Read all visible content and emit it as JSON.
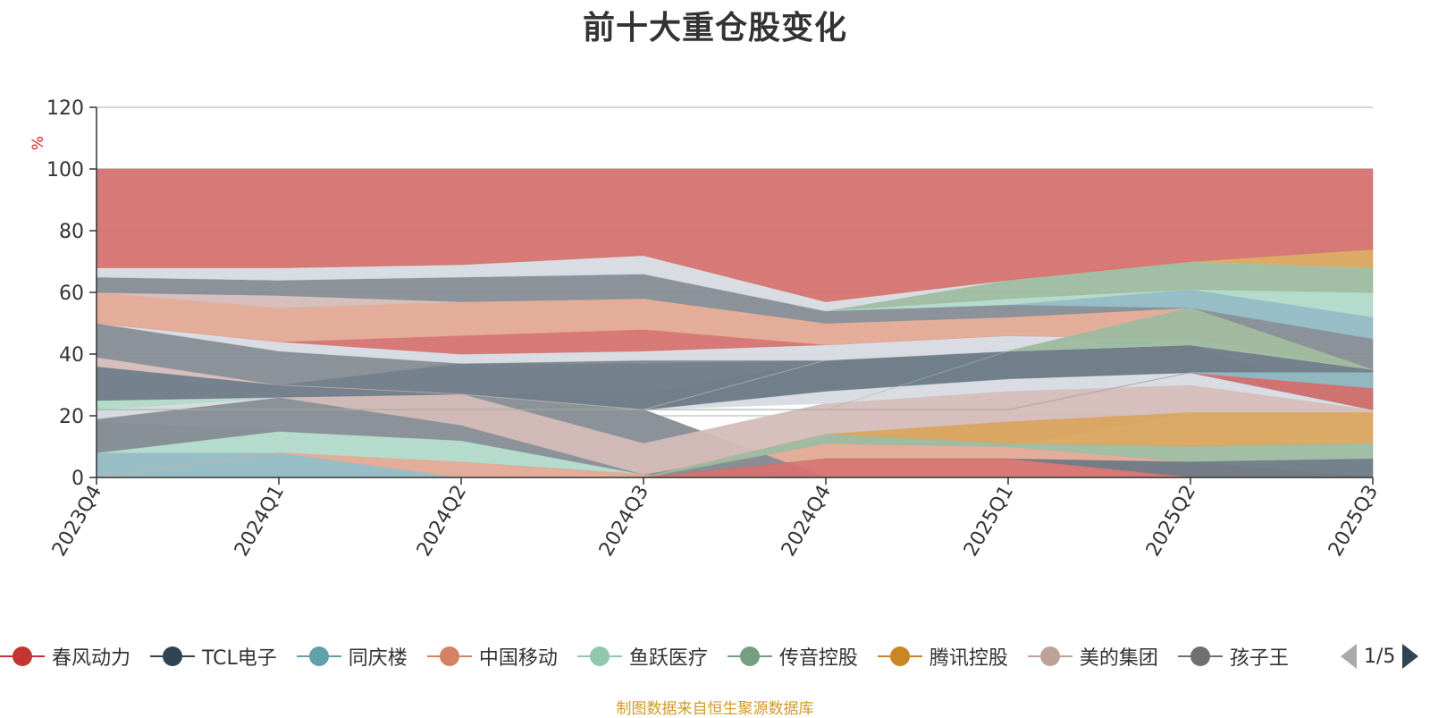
{
  "chart_data": {
    "type": "area",
    "title": "前十大重仓股变化",
    "ylabel": "%",
    "ylim": [
      0,
      120
    ],
    "yticks": [
      "0",
      "20",
      "40",
      "60",
      "80",
      "100",
      "120"
    ],
    "categories": [
      "2023Q4",
      "2024Q1",
      "2024Q2",
      "2024Q3",
      "2024Q4",
      "2025Q1",
      "2025Q2",
      "2025Q3"
    ],
    "grid": true,
    "bands": [
      {
        "color": "#91bac4",
        "values": [
          [
            0,
            8
          ],
          [
            0,
            8
          ],
          [
            0,
            0
          ],
          [
            0,
            0
          ],
          [
            0,
            0
          ],
          [
            0,
            0
          ],
          [
            0,
            0
          ],
          [
            0,
            0
          ]
        ]
      },
      {
        "color": "#b0d9c8",
        "values": [
          [
            8,
            18
          ],
          [
            8,
            15
          ],
          [
            5,
            12
          ],
          [
            0,
            1
          ],
          [
            0,
            0
          ],
          [
            0,
            0
          ],
          [
            0,
            0
          ],
          [
            0,
            0
          ]
        ]
      },
      {
        "color": "#e3a994",
        "values": [
          [
            0,
            0
          ],
          [
            8,
            8
          ],
          [
            0,
            5
          ],
          [
            0,
            1
          ],
          [
            6,
            11
          ],
          [
            6,
            10
          ],
          [
            0,
            5
          ],
          [
            0,
            0
          ]
        ]
      },
      {
        "color": "#858c94",
        "values": [
          [
            8,
            19
          ],
          [
            15,
            26
          ],
          [
            12,
            27
          ],
          [
            1,
            22
          ],
          [
            0,
            0
          ],
          [
            0,
            0
          ],
          [
            0,
            0
          ],
          [
            0,
            0
          ]
        ]
      },
      {
        "color": "#d4bcb8",
        "values": [
          [
            19,
            22
          ],
          [
            26,
            26
          ],
          [
            17,
            27
          ],
          [
            1,
            11
          ],
          [
            11,
            24
          ],
          [
            10,
            28
          ],
          [
            21,
            30
          ],
          [
            21,
            22
          ]
        ]
      },
      {
        "color": "#d7dbe2",
        "values": [
          [
            19,
            22
          ],
          [
            26,
            26
          ],
          [
            27,
            27
          ],
          [
            22,
            22
          ],
          [
            24,
            28
          ],
          [
            28,
            32
          ],
          [
            30,
            34
          ],
          [
            22,
            22
          ]
        ]
      },
      {
        "color": "#b0d9c8",
        "values": [
          [
            22,
            25
          ],
          [
            26,
            26
          ],
          [
            27,
            27
          ],
          [
            22,
            27
          ],
          [
            28,
            38
          ],
          [
            32,
            41
          ],
          [
            34,
            43
          ],
          [
            22,
            22
          ]
        ]
      },
      {
        "color": "#6e7a86",
        "values": [
          [
            25,
            36
          ],
          [
            26,
            30
          ],
          [
            27,
            37
          ],
          [
            22,
            38
          ],
          [
            28,
            38
          ],
          [
            32,
            41
          ],
          [
            34,
            43
          ],
          [
            22,
            35
          ]
        ]
      },
      {
        "color": "#d4bcb8",
        "values": [
          [
            36,
            39
          ],
          [
            30,
            30
          ],
          [
            27,
            27
          ],
          [
            22,
            22
          ],
          [
            38,
            38
          ],
          [
            41,
            41
          ],
          [
            43,
            43
          ],
          [
            35,
            35
          ]
        ]
      },
      {
        "color": "#858c94",
        "values": [
          [
            39,
            50
          ],
          [
            30,
            41
          ],
          [
            37,
            37
          ],
          [
            37,
            38
          ],
          [
            38,
            38
          ],
          [
            41,
            41
          ],
          [
            43,
            43
          ],
          [
            35,
            35
          ]
        ]
      },
      {
        "color": "#d7dbe2",
        "values": [
          [
            50,
            50
          ],
          [
            41,
            44
          ],
          [
            37,
            40
          ],
          [
            38,
            41
          ],
          [
            38,
            43
          ],
          [
            41,
            46
          ],
          [
            43,
            45
          ],
          [
            35,
            35
          ]
        ]
      },
      {
        "color": "#d47270",
        "values": [
          [
            50,
            50
          ],
          [
            44,
            44
          ],
          [
            40,
            46
          ],
          [
            41,
            48
          ],
          [
            43,
            43
          ],
          [
            46,
            46
          ],
          [
            45,
            45
          ],
          [
            35,
            35
          ]
        ]
      },
      {
        "color": "#e3a994",
        "values": [
          [
            50,
            60
          ],
          [
            44,
            55
          ],
          [
            46,
            57
          ],
          [
            48,
            58
          ],
          [
            43,
            50
          ],
          [
            46,
            52
          ],
          [
            45,
            55
          ],
          [
            35,
            35
          ]
        ]
      },
      {
        "color": "#d4bcb8",
        "values": [
          [
            60,
            60
          ],
          [
            55,
            59
          ],
          [
            57,
            57
          ],
          [
            58,
            58
          ],
          [
            50,
            50
          ],
          [
            52,
            52
          ],
          [
            55,
            55
          ],
          [
            35,
            35
          ]
        ]
      },
      {
        "color": "#858c94",
        "values": [
          [
            60,
            65
          ],
          [
            59,
            64
          ],
          [
            57,
            65
          ],
          [
            58,
            66
          ],
          [
            50,
            54
          ],
          [
            52,
            56
          ],
          [
            55,
            55
          ],
          [
            35,
            45
          ]
        ]
      },
      {
        "color": "#91bac4",
        "values": [
          [
            65,
            65
          ],
          [
            64,
            64
          ],
          [
            65,
            65
          ],
          [
            66,
            66
          ],
          [
            54,
            54
          ],
          [
            56,
            56
          ],
          [
            55,
            61
          ],
          [
            45,
            52
          ]
        ]
      },
      {
        "color": "#b0d9c8",
        "values": [
          [
            65,
            65
          ],
          [
            64,
            64
          ],
          [
            65,
            65
          ],
          [
            66,
            66
          ],
          [
            54,
            54
          ],
          [
            56,
            58
          ],
          [
            61,
            61
          ],
          [
            52,
            60
          ]
        ]
      },
      {
        "color": "#9dba9f",
        "values": [
          [
            65,
            65
          ],
          [
            64,
            64
          ],
          [
            65,
            65
          ],
          [
            66,
            66
          ],
          [
            54,
            54
          ],
          [
            58,
            64
          ],
          [
            61,
            70
          ],
          [
            60,
            68
          ]
        ]
      },
      {
        "color": "#d7dbe2",
        "values": [
          [
            65,
            68
          ],
          [
            64,
            68
          ],
          [
            65,
            69
          ],
          [
            66,
            72
          ],
          [
            54,
            57
          ],
          [
            64,
            64
          ],
          [
            70,
            70
          ],
          [
            68,
            68
          ]
        ]
      },
      {
        "color": "#d9a55e",
        "values": [
          [
            68,
            68
          ],
          [
            68,
            68
          ],
          [
            69,
            69
          ],
          [
            72,
            72
          ],
          [
            57,
            57
          ],
          [
            64,
            64
          ],
          [
            70,
            70
          ],
          [
            68,
            74
          ]
        ]
      },
      {
        "color": "#d47270",
        "values": [
          [
            68,
            100
          ],
          [
            68,
            100
          ],
          [
            69,
            100
          ],
          [
            72,
            100
          ],
          [
            57,
            100
          ],
          [
            64,
            100
          ],
          [
            70,
            100
          ],
          [
            74,
            100
          ]
        ]
      },
      {
        "color": "#d9a55e",
        "values": [
          [
            0,
            0
          ],
          [
            0,
            0
          ],
          [
            0,
            0
          ],
          [
            0,
            0
          ],
          [
            14,
            14
          ],
          [
            11,
            18
          ],
          [
            10,
            21
          ],
          [
            11,
            21
          ]
        ]
      },
      {
        "color": "#9dba9f",
        "values": [
          [
            0,
            0
          ],
          [
            0,
            0
          ],
          [
            0,
            0
          ],
          [
            0,
            0
          ],
          [
            11,
            14
          ],
          [
            10,
            11
          ],
          [
            5,
            10
          ],
          [
            6,
            11
          ]
        ]
      },
      {
        "color": "#6e7a86",
        "values": [
          [
            0,
            0
          ],
          [
            0,
            0
          ],
          [
            0,
            0
          ],
          [
            0,
            0
          ],
          [
            6,
            6
          ],
          [
            6,
            6
          ],
          [
            0,
            5
          ],
          [
            0,
            6
          ]
        ]
      },
      {
        "color": "#d47270",
        "values": [
          [
            0,
            0
          ],
          [
            0,
            0
          ],
          [
            0,
            0
          ],
          [
            0,
            0
          ],
          [
            0,
            6
          ],
          [
            0,
            6
          ],
          [
            0,
            0
          ],
          [
            0,
            0
          ]
        ]
      },
      {
        "color": "#d47270",
        "values": [
          [
            22,
            22
          ],
          [
            22,
            22
          ],
          [
            22,
            22
          ],
          [
            22,
            22
          ],
          [
            22,
            22
          ],
          [
            22,
            22
          ],
          [
            34,
            34
          ],
          [
            22,
            29
          ]
        ]
      },
      {
        "color": "#91bac4",
        "values": [
          [
            22,
            22
          ],
          [
            22,
            22
          ],
          [
            22,
            22
          ],
          [
            22,
            22
          ],
          [
            22,
            22
          ],
          [
            22,
            22
          ],
          [
            34,
            34
          ],
          [
            29,
            34
          ]
        ]
      },
      {
        "color": "#9dba9f",
        "values": [
          [
            22,
            22
          ],
          [
            22,
            22
          ],
          [
            22,
            22
          ],
          [
            22,
            22
          ],
          [
            22,
            22
          ],
          [
            41,
            41
          ],
          [
            43,
            55
          ],
          [
            35,
            35
          ]
        ]
      }
    ]
  },
  "legend": {
    "items": [
      {
        "label": "春风动力",
        "color": "#c23531"
      },
      {
        "label": "TCL电子",
        "color": "#2f4554"
      },
      {
        "label": "同庆楼",
        "color": "#61a0a8"
      },
      {
        "label": "中国移动",
        "color": "#d48265"
      },
      {
        "label": "鱼跃医疗",
        "color": "#91c7ae"
      },
      {
        "label": "传音控股",
        "color": "#749f83"
      },
      {
        "label": "腾讯控股",
        "color": "#ca8622"
      },
      {
        "label": "美的集团",
        "color": "#bda29a"
      },
      {
        "label": "孩子王",
        "color": "#6e7074"
      }
    ],
    "page": "1/5"
  },
  "footer": "制图数据来自恒生聚源数据库"
}
